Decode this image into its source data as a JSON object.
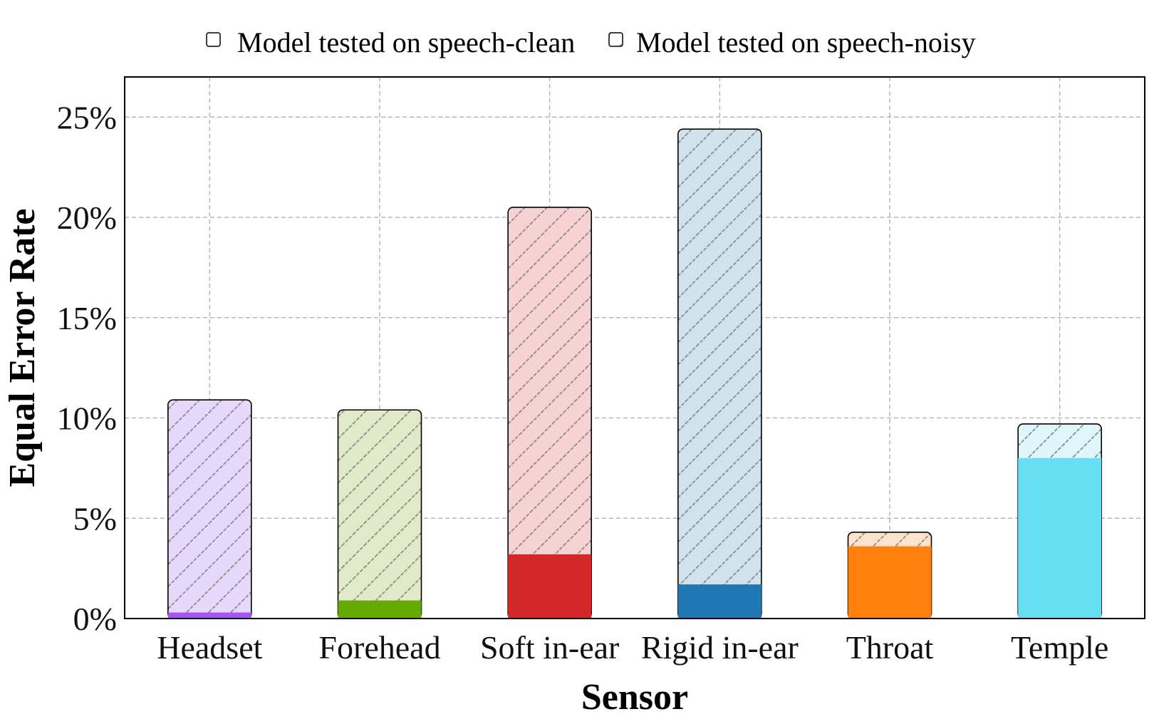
{
  "chart_data": {
    "type": "bar",
    "stacked_overlay": true,
    "title": "",
    "xlabel": "Sensor",
    "ylabel": "Equal Error Rate",
    "ylim": [
      0,
      27
    ],
    "yticks": [
      0,
      5,
      10,
      15,
      20,
      25
    ],
    "ytick_labels": [
      "0%",
      "5%",
      "10%",
      "15%",
      "20%",
      "25%"
    ],
    "categories": [
      "Headset",
      "Forehead",
      "Soft in-ear",
      "Rigid in-ear",
      "Throat",
      "Temple"
    ],
    "colors": [
      "#a855f7",
      "#66aa00",
      "#d62728",
      "#1f77b4",
      "#ff7f0e",
      "#67e0f3"
    ],
    "noisy_fill_colors": [
      "#e6d8fb",
      "#e0eac8",
      "#f7d2d2",
      "#d0e2ec",
      "#fde3cc",
      "#dff6fa"
    ],
    "series": [
      {
        "name": "Model tested on speech-clean",
        "values": [
          0.3,
          0.9,
          3.2,
          1.7,
          3.6,
          8.0
        ]
      },
      {
        "name": "Model tested on speech-noisy",
        "values": [
          10.9,
          10.4,
          20.5,
          24.4,
          4.3,
          9.7
        ]
      }
    ],
    "grid": true,
    "legend_position": "top-center"
  }
}
